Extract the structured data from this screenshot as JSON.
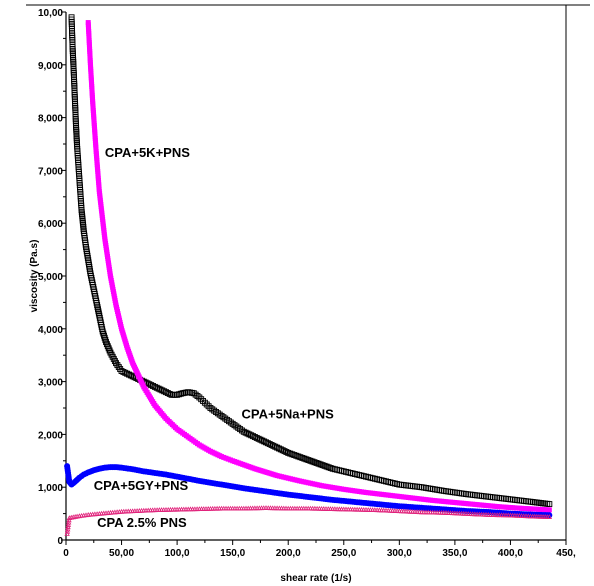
{
  "chart_data": {
    "type": "scatter",
    "title": "",
    "xlabel": "shear rate (1/s)",
    "ylabel": "viscosity (Pa.s)",
    "xlim": [
      0,
      450
    ],
    "ylim": [
      0,
      10
    ],
    "x_ticks": [
      0,
      50,
      100,
      150,
      200,
      250,
      300,
      350,
      400,
      450
    ],
    "x_tick_labels": [
      "0",
      "50,00",
      "100,0",
      "150,0",
      "200,0",
      "250,0",
      "300,0",
      "350,0",
      "400,0",
      "450,"
    ],
    "y_ticks": [
      0,
      1,
      2,
      3,
      4,
      5,
      6,
      7,
      8,
      9,
      10
    ],
    "y_tick_labels": [
      "0",
      "1,000",
      "2,000",
      "3,000",
      "4,000",
      "5,000",
      "6,000",
      "7,000",
      "8,000",
      "9,000",
      "10,00"
    ],
    "grid": false,
    "annotations": [
      {
        "text": "CPA+5K+PNS",
        "x": 35,
        "y": 7.25
      },
      {
        "text": "CPA+5Na+PNS",
        "x": 158,
        "y": 2.3
      },
      {
        "text": "CPA+5GY+PNS",
        "x": 25,
        "y": 0.95
      },
      {
        "text": "CPA 2.5% PNS",
        "x": 28,
        "y": 0.25
      }
    ],
    "series": [
      {
        "color": "#000000",
        "marker": "open-square",
        "points": [
          [
            5,
            9.9
          ],
          [
            6,
            9.3
          ],
          [
            7,
            8.85
          ],
          [
            8,
            8.35
          ],
          [
            9,
            7.85
          ],
          [
            10,
            7.45
          ],
          [
            11,
            7.15
          ],
          [
            12,
            6.85
          ],
          [
            13,
            6.55
          ],
          [
            14,
            6.25
          ],
          [
            15,
            6.05
          ],
          [
            16,
            5.85
          ],
          [
            18,
            5.55
          ],
          [
            20,
            5.3
          ],
          [
            22,
            5.05
          ],
          [
            25,
            4.75
          ],
          [
            28,
            4.45
          ],
          [
            30,
            4.25
          ],
          [
            33,
            3.95
          ],
          [
            36,
            3.75
          ],
          [
            40,
            3.55
          ],
          [
            45,
            3.35
          ],
          [
            50,
            3.2
          ],
          [
            55,
            3.15
          ],
          [
            60,
            3.1
          ],
          [
            65,
            3.05
          ],
          [
            70,
            3.0
          ],
          [
            75,
            2.95
          ],
          [
            80,
            2.9
          ],
          [
            85,
            2.85
          ],
          [
            90,
            2.8
          ],
          [
            95,
            2.75
          ],
          [
            100,
            2.75
          ],
          [
            105,
            2.78
          ],
          [
            110,
            2.8
          ],
          [
            115,
            2.78
          ],
          [
            120,
            2.7
          ],
          [
            125,
            2.6
          ],
          [
            130,
            2.5
          ],
          [
            140,
            2.35
          ],
          [
            150,
            2.2
          ],
          [
            160,
            2.05
          ],
          [
            170,
            1.95
          ],
          [
            180,
            1.85
          ],
          [
            190,
            1.75
          ],
          [
            200,
            1.65
          ],
          [
            220,
            1.5
          ],
          [
            240,
            1.35
          ],
          [
            260,
            1.25
          ],
          [
            280,
            1.15
          ],
          [
            300,
            1.05
          ],
          [
            320,
            1.0
          ],
          [
            340,
            0.93
          ],
          [
            360,
            0.87
          ],
          [
            380,
            0.82
          ],
          [
            400,
            0.77
          ],
          [
            420,
            0.72
          ],
          [
            435,
            0.68
          ]
        ]
      },
      {
        "color": "#ff00ff",
        "marker": "filled-square",
        "points": [
          [
            20,
            9.8
          ],
          [
            22,
            9.0
          ],
          [
            24,
            8.3
          ],
          [
            27,
            7.4
          ],
          [
            30,
            6.6
          ],
          [
            35,
            5.7
          ],
          [
            40,
            5.0
          ],
          [
            45,
            4.45
          ],
          [
            50,
            4.0
          ],
          [
            55,
            3.65
          ],
          [
            60,
            3.35
          ],
          [
            70,
            2.9
          ],
          [
            80,
            2.55
          ],
          [
            90,
            2.3
          ],
          [
            100,
            2.1
          ],
          [
            110,
            1.95
          ],
          [
            120,
            1.8
          ],
          [
            130,
            1.68
          ],
          [
            140,
            1.58
          ],
          [
            150,
            1.5
          ],
          [
            170,
            1.35
          ],
          [
            190,
            1.22
          ],
          [
            210,
            1.12
          ],
          [
            230,
            1.03
          ],
          [
            250,
            0.96
          ],
          [
            270,
            0.9
          ],
          [
            290,
            0.85
          ],
          [
            310,
            0.8
          ],
          [
            330,
            0.75
          ],
          [
            350,
            0.71
          ],
          [
            370,
            0.67
          ],
          [
            390,
            0.63
          ],
          [
            410,
            0.6
          ],
          [
            435,
            0.57
          ]
        ]
      },
      {
        "color": "#0000ff",
        "marker": "filled-circle",
        "points": [
          [
            1,
            1.4
          ],
          [
            3,
            1.1
          ],
          [
            5,
            1.05
          ],
          [
            8,
            1.1
          ],
          [
            12,
            1.18
          ],
          [
            16,
            1.24
          ],
          [
            20,
            1.28
          ],
          [
            25,
            1.32
          ],
          [
            30,
            1.35
          ],
          [
            35,
            1.37
          ],
          [
            40,
            1.38
          ],
          [
            45,
            1.38
          ],
          [
            50,
            1.37
          ],
          [
            60,
            1.34
          ],
          [
            70,
            1.3
          ],
          [
            80,
            1.27
          ],
          [
            90,
            1.24
          ],
          [
            100,
            1.2
          ],
          [
            120,
            1.12
          ],
          [
            140,
            1.05
          ],
          [
            160,
            0.98
          ],
          [
            180,
            0.92
          ],
          [
            200,
            0.86
          ],
          [
            220,
            0.81
          ],
          [
            240,
            0.76
          ],
          [
            260,
            0.72
          ],
          [
            280,
            0.68
          ],
          [
            300,
            0.64
          ],
          [
            320,
            0.61
          ],
          [
            340,
            0.58
          ],
          [
            360,
            0.55
          ],
          [
            380,
            0.53
          ],
          [
            400,
            0.5
          ],
          [
            420,
            0.48
          ],
          [
            435,
            0.47
          ]
        ]
      },
      {
        "color": "#e0207a",
        "marker": "small-triangle",
        "points": [
          [
            1,
            0.12
          ],
          [
            3,
            0.42
          ],
          [
            10,
            0.45
          ],
          [
            20,
            0.48
          ],
          [
            30,
            0.5
          ],
          [
            40,
            0.52
          ],
          [
            50,
            0.54
          ],
          [
            60,
            0.55
          ],
          [
            80,
            0.57
          ],
          [
            100,
            0.58
          ],
          [
            120,
            0.59
          ],
          [
            140,
            0.6
          ],
          [
            160,
            0.6
          ],
          [
            180,
            0.61
          ],
          [
            200,
            0.6
          ],
          [
            220,
            0.6
          ],
          [
            240,
            0.59
          ],
          [
            260,
            0.58
          ],
          [
            280,
            0.57
          ],
          [
            300,
            0.55
          ],
          [
            320,
            0.53
          ],
          [
            340,
            0.52
          ],
          [
            360,
            0.5
          ],
          [
            380,
            0.48
          ],
          [
            400,
            0.47
          ],
          [
            420,
            0.45
          ],
          [
            435,
            0.44
          ]
        ]
      }
    ]
  }
}
